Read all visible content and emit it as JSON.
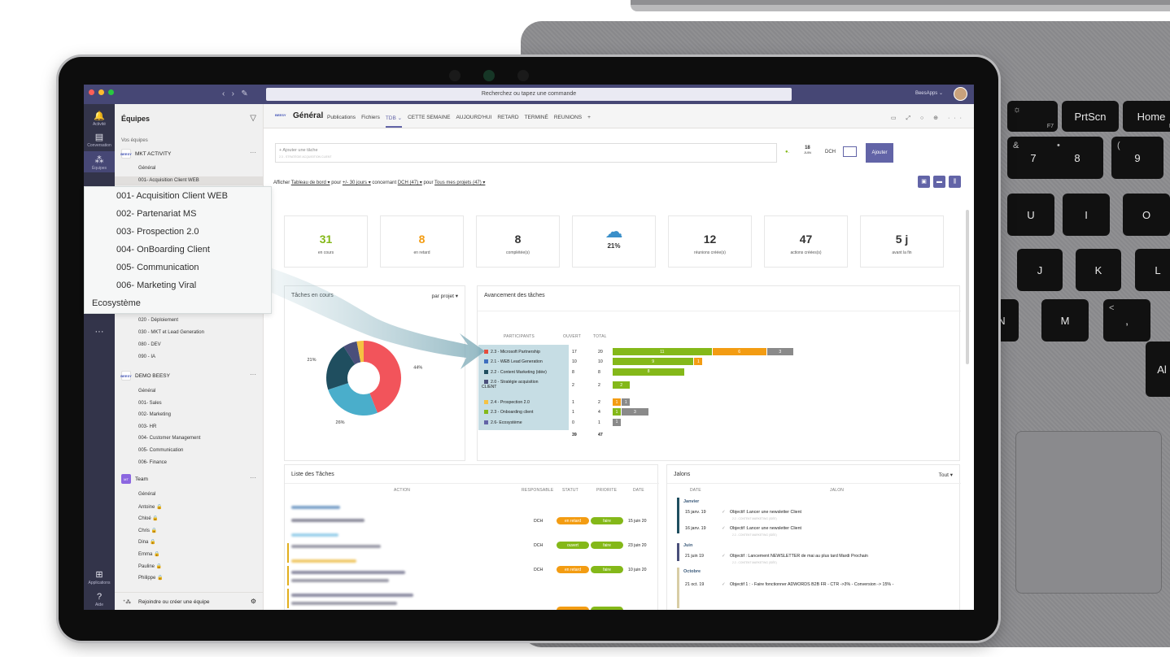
{
  "titlebar": {
    "search_placeholder": "Recherchez ou tapez une commande",
    "user": "BeesApps ⌄"
  },
  "rail": [
    {
      "label": "Activité",
      "icon": "bell-icon"
    },
    {
      "label": "Conversation",
      "icon": "chat-icon"
    },
    {
      "label": "Équipes",
      "icon": "teams-icon"
    },
    {
      "label": "Applications",
      "icon": "apps-icon"
    },
    {
      "label": "Aide",
      "icon": "help-icon"
    }
  ],
  "sidebar": {
    "title": "Équipes",
    "section": "Vos équipes",
    "team1": {
      "name": "MKT ACTIVITY",
      "channels": [
        "Général",
        "001- Acquisition Client WEB",
        "020 - Déploiement",
        "030 - MKT et Lead Generation",
        "080 - DEV",
        "090 - IA"
      ]
    },
    "team2": {
      "name": "DEMO BEESY",
      "channels": [
        "Général",
        "001- Sales",
        "002- Marketing",
        "003- HR",
        "004- Customer Management",
        "005- Communication",
        "006- Finance"
      ]
    },
    "team3": {
      "name": "Team",
      "channels": [
        "Général",
        "Antoine 🔒",
        "Chloé 🔒",
        "Chris 🔒",
        "Dina 🔒",
        "Emma 🔒",
        "Pauline 🔒",
        "Philippe 🔒"
      ]
    },
    "join": "Rejoindre ou créer une équipe",
    "logo_text": "BEESY",
    "team_badge": "MT"
  },
  "popup": {
    "items": [
      "001- Acquisition Client WEB",
      "002- Partenariat MS",
      "003- Prospection 2.0",
      "004- OnBoarding Client",
      "005- Communication",
      "006- Marketing Viral"
    ],
    "extra": "Ecosystème"
  },
  "header": {
    "title": "Général",
    "tabs": [
      "Publications",
      "Fichiers",
      "TDB ⌄",
      "CETTE SEMAINE",
      "AUJOURD'HUI",
      "RETARD",
      "TERMINÉ",
      "REUNIONS",
      "+"
    ]
  },
  "newtask": {
    "placeholder": "+ Ajouter une tâche",
    "sub": "2.3 - STRATÉGIE ACQUISITION CLIENT",
    "date_day": "18",
    "date_month": "JUIN",
    "owner": "DCH",
    "add": "Ajouter"
  },
  "filter": {
    "afficher": "Afficher",
    "view": "Tableau de bord ▾",
    "pour": "pour",
    "period": "+/- 30 jours ▾",
    "concernant": "concernant",
    "who": "DCH (47) ▾",
    "pour2": "pour",
    "projects": "Tous mes projets (47) ▾"
  },
  "kpis": [
    {
      "value": "31",
      "label": "en cours",
      "color": "#84b819"
    },
    {
      "value": "8",
      "label": "en retard",
      "color": "#f39c12"
    },
    {
      "value": "8",
      "label": "complétée(s)",
      "color": "#333333"
    },
    {
      "value": "21%",
      "label": "",
      "color": "#333333",
      "icon": "weather-sun-cloud-icon"
    },
    {
      "value": "12",
      "label": "réunions créée(s)",
      "color": "#333333"
    },
    {
      "value": "47",
      "label": "actions créées(s)",
      "color": "#333333"
    },
    {
      "value": "5 j",
      "label": "avant la fin",
      "color": "#333333"
    }
  ],
  "tasks_panel": {
    "title": "Tâches en cours",
    "dropdown": "par projet ▾"
  },
  "chart_data": {
    "type": "pie",
    "categories": [
      "",
      "",
      "",
      "",
      ""
    ],
    "values": [
      44,
      26,
      21,
      6,
      3
    ],
    "colors": [
      "#f2545b",
      "#4aaecb",
      "#1f4e5f",
      "#4a4f7a",
      "#f5c242"
    ],
    "labels": [
      "44%",
      "26%",
      "21%",
      "",
      ""
    ]
  },
  "progress": {
    "title": "Avancement des tâches",
    "cols": [
      "PARTICIPANTS",
      "OUVERT",
      "TOTAL"
    ],
    "rows": [
      {
        "name": "2.3 - Microsoft Partnership",
        "color": "#e74c3c",
        "open": "17",
        "total": "20",
        "segs": [
          {
            "v": 11,
            "c": "#84b819"
          },
          {
            "v": 6,
            "c": "#f39c12"
          },
          {
            "v": 3,
            "c": "#8a8a8a"
          }
        ]
      },
      {
        "name": "2.1 - WEB Lead Generation",
        "color": "#3f6fbf",
        "open": "10",
        "total": "10",
        "segs": [
          {
            "v": 9,
            "c": "#84b819"
          },
          {
            "v": 1,
            "c": "#f39c12"
          }
        ]
      },
      {
        "name": "2.2 - Content Marketing (idée)",
        "color": "#1f4e5f",
        "open": "8",
        "total": "8",
        "segs": [
          {
            "v": 8,
            "c": "#84b819"
          }
        ]
      },
      {
        "name": "2.0 - Stratégie acquisition",
        "name2": "CLIENT",
        "color": "#4a4f7a",
        "open": "2",
        "total": "2",
        "segs": [
          {
            "v": 2,
            "c": "#84b819"
          }
        ]
      },
      {
        "name": "2.4 - Prospection 2.0",
        "color": "#f5c242",
        "open": "1",
        "total": "2",
        "segs": [
          {
            "v": 1,
            "c": "#f39c12"
          },
          {
            "v": 1,
            "c": "#8a8a8a"
          }
        ]
      },
      {
        "name": "2.3 - Onboarding client",
        "color": "#84b819",
        "open": "1",
        "total": "4",
        "segs": [
          {
            "v": 1,
            "c": "#84b819"
          },
          {
            "v": 3,
            "c": "#8a8a8a"
          }
        ]
      },
      {
        "name": "2.6- Ecosystème",
        "color": "#6264a7",
        "open": "0",
        "total": "1",
        "segs": [
          {
            "v": 1,
            "c": "#8a8a8a"
          }
        ]
      }
    ],
    "sum_open": "39",
    "sum_total": "47"
  },
  "task_list": {
    "title": "Liste des Tâches",
    "cols": [
      "ACTION",
      "RESPONSABLE",
      "STATUT",
      "PRIORITE",
      "DATE"
    ],
    "rows": [
      {
        "owner": "DCH",
        "status": "en retard",
        "status_color": "#f39c12",
        "priority": "faire",
        "date": "15 juin 20"
      },
      {
        "owner": "DCH",
        "status": "ouvert",
        "status_color": "#84b819",
        "priority": "faire",
        "date": "23 juin 20"
      },
      {
        "owner": "DCH",
        "status": "en retard",
        "status_color": "#f39c12",
        "priority": "faire",
        "date": "10 juin 20"
      }
    ]
  },
  "jalons": {
    "title": "Jalons",
    "dropdown": "Tout ▾",
    "cols": [
      "DATE",
      "JALON"
    ],
    "months": [
      "Janvier",
      "Juin",
      "Octobre"
    ],
    "rows": [
      {
        "date": "15 janv. 19",
        "text": "Objectif :Lancer une newsletter Client",
        "sub": "2.2 - CONTENT MARKETING (IDÉE)"
      },
      {
        "date": "16 janv. 19",
        "text": "Objectif :Lancer une newsletter Client",
        "sub": "2.2 - CONTENT MARKETING (IDÉE)"
      },
      {
        "date": "21 juin 19",
        "text": "Objectif : Lancement NEWSLETTER de mai au plus tard Mardi Prochain",
        "sub": "2.2 - CONTENT MARKETING (IDÉE)"
      },
      {
        "date": "21 oct. 19",
        "text": "Objectif 1 : - Faire fonctionner ADWORDS B2B FR - CTR ->3% - Conversion -> 15% -",
        "sub": ""
      }
    ]
  },
  "keyboard": {
    "keys": [
      {
        "t": "PrtScn"
      },
      {
        "t": "Home",
        "s": "F9"
      },
      {
        "t": "",
        "s": "F7",
        "u": "☼"
      },
      {
        "t": "7",
        "u": "&"
      },
      {
        "t": "8",
        "u": "•"
      },
      {
        "t": "9",
        "u": "("
      },
      {
        "t": "U"
      },
      {
        "t": "I"
      },
      {
        "t": "O"
      },
      {
        "t": "J"
      },
      {
        "t": "K"
      },
      {
        "t": "L"
      },
      {
        "t": "N"
      },
      {
        "t": "M"
      },
      {
        "t": ",",
        "u": "<"
      },
      {
        "t": "Al"
      }
    ]
  }
}
